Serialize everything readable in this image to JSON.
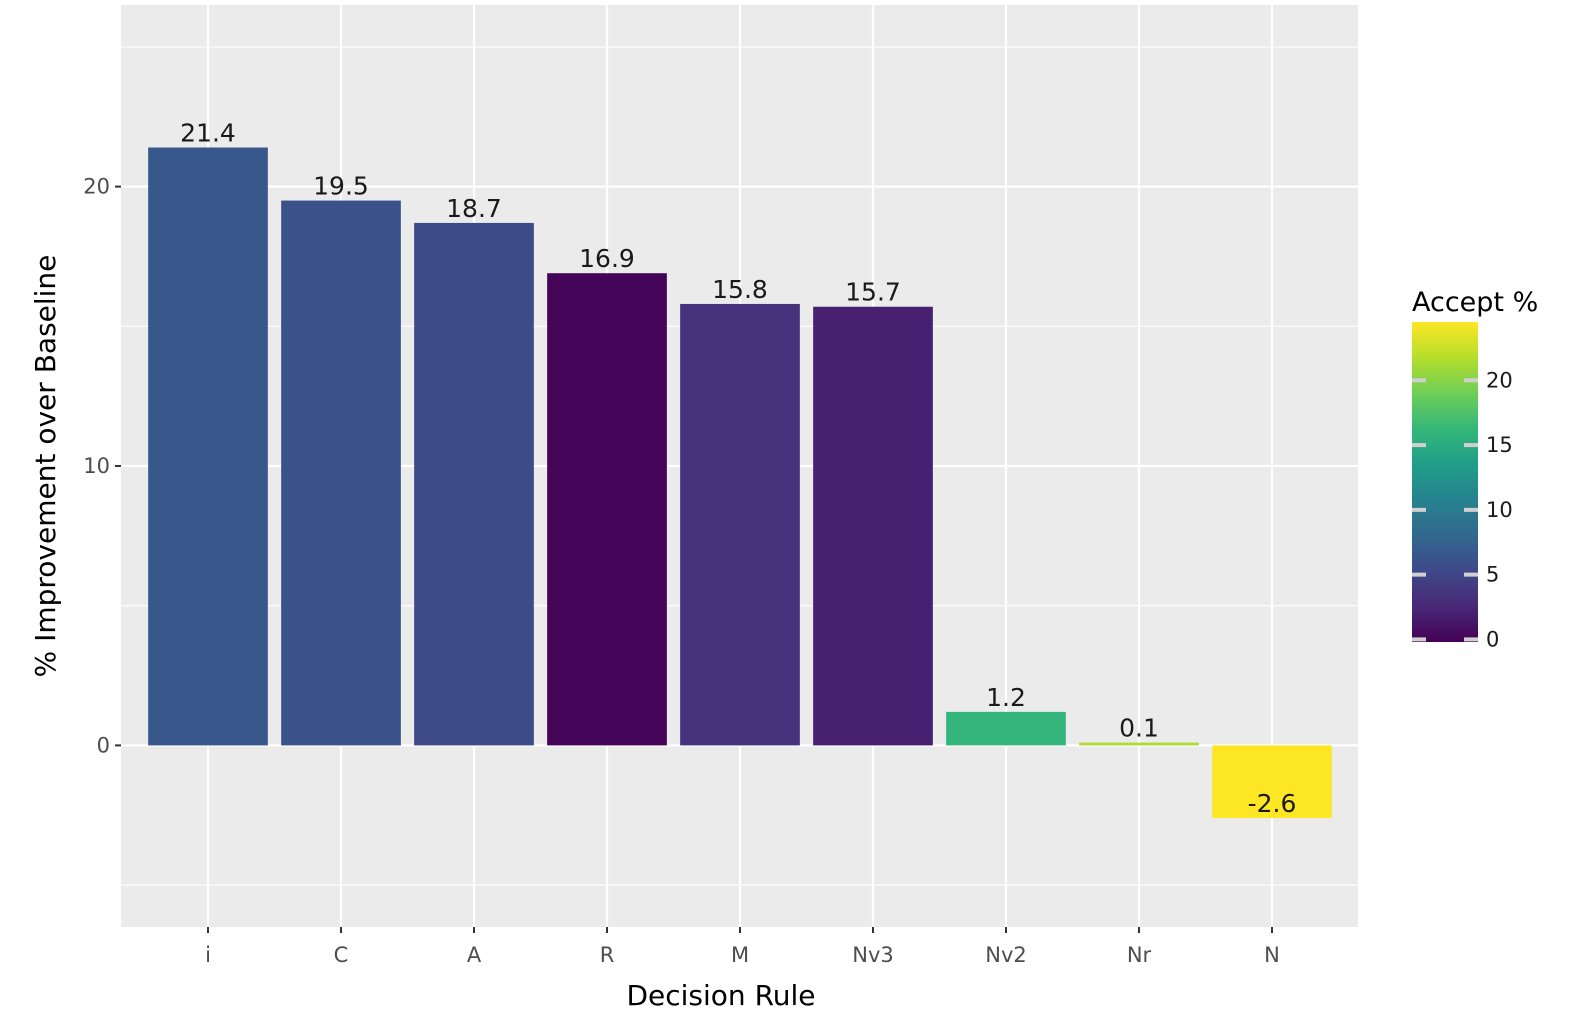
{
  "chart_data": {
    "type": "bar",
    "title": "",
    "xlabel": "Decision Rule",
    "ylabel": "% Improvement over Baseline",
    "categories": [
      "i",
      "C",
      "A",
      "R",
      "M",
      "Nv3",
      "Nv2",
      "Nr",
      "N"
    ],
    "values": [
      21.4,
      19.5,
      18.7,
      16.9,
      15.8,
      15.7,
      1.2,
      0.1,
      -2.6
    ],
    "data_labels": [
      "21.4",
      "19.5",
      "18.7",
      "16.9",
      "15.8",
      "15.7",
      "1.2",
      "0.1",
      "-2.6"
    ],
    "fill_values": [
      6.5,
      6.0,
      5.5,
      0.0,
      3.5,
      2.0,
      16.0,
      21.5,
      25.0
    ],
    "ylim": [
      -6.5,
      26.5
    ],
    "yticks": [
      0,
      10,
      20
    ],
    "ytick_labels": [
      "0",
      "10",
      "20"
    ],
    "grid": true,
    "background": "#ebebeb",
    "legend": {
      "title": "Accept %",
      "placement": "right",
      "range": [
        -0.2,
        24.5
      ],
      "ticks": [
        0,
        5,
        10,
        15,
        20
      ],
      "tick_labels": [
        "0",
        "5",
        "10",
        "15",
        "20"
      ],
      "colormap": "viridis"
    }
  }
}
